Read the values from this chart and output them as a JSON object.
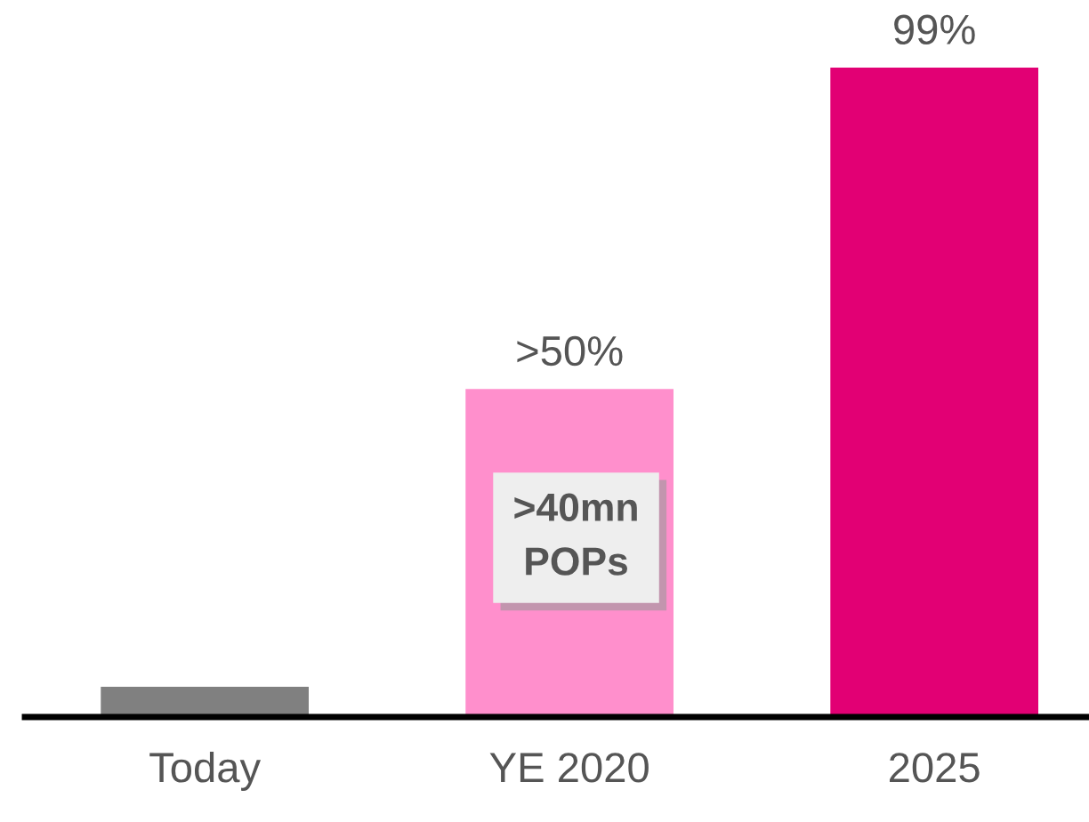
{
  "chart_data": {
    "type": "bar",
    "categories": [
      "Today",
      "YE 2020",
      "2025"
    ],
    "values": [
      4.6,
      50,
      99
    ],
    "colors": [
      "#808080",
      "#ff8fcc",
      "#e20074"
    ],
    "value_labels": [
      null,
      ">50%",
      "99%"
    ],
    "annotations": [
      ">40mn\nPOPs"
    ],
    "grid": false,
    "legend": false
  }
}
